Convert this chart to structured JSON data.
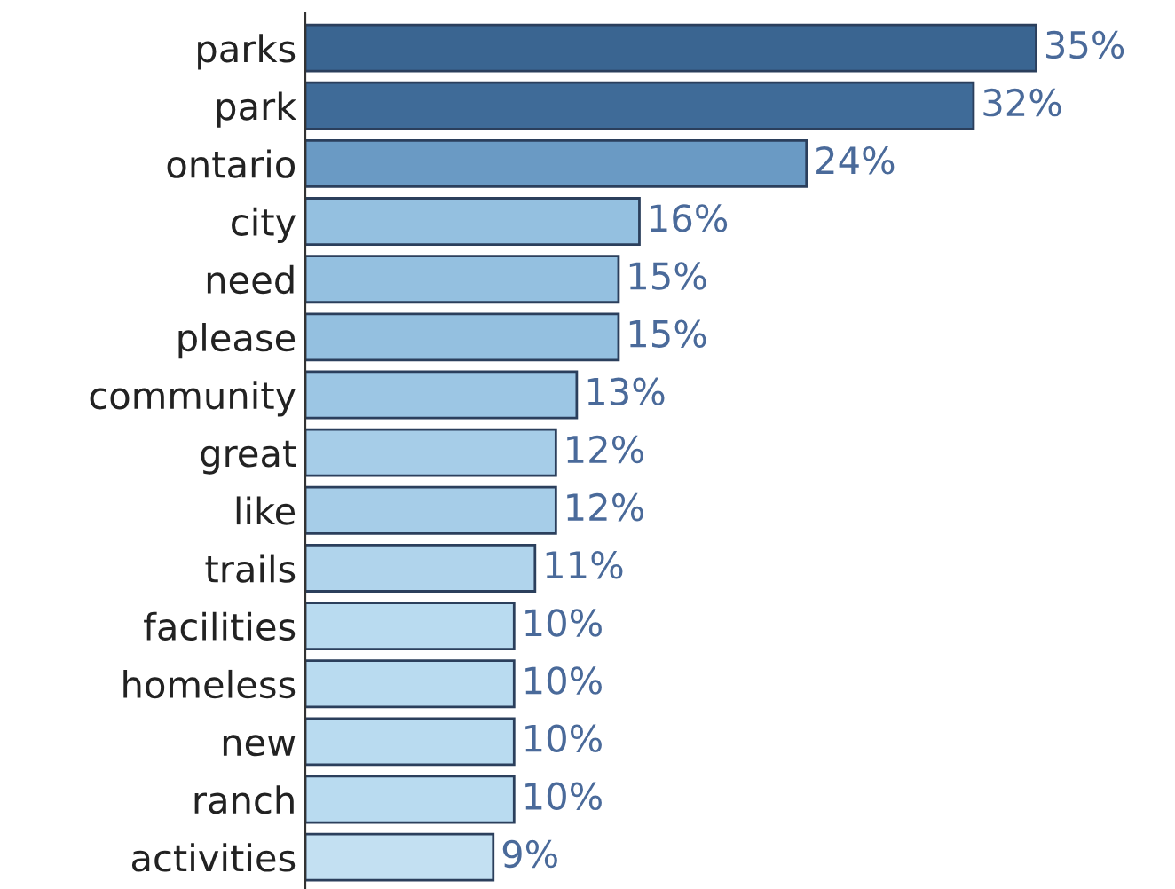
{
  "chart_data": {
    "type": "bar",
    "orientation": "horizontal",
    "categories": [
      "parks",
      "park",
      "ontario",
      "city",
      "need",
      "please",
      "community",
      "great",
      "like",
      "trails",
      "facilities",
      "homeless",
      "new",
      "ranch",
      "activities"
    ],
    "values": [
      35,
      32,
      24,
      16,
      15,
      15,
      13,
      12,
      12,
      11,
      10,
      10,
      10,
      10,
      9
    ],
    "value_labels": [
      "35%",
      "32%",
      "24%",
      "16%",
      "15%",
      "15%",
      "13%",
      "12%",
      "12%",
      "11%",
      "10%",
      "10%",
      "10%",
      "10%",
      "9%"
    ],
    "colors": [
      "#3a6591",
      "#3f6b98",
      "#6a9ac4",
      "#94c0e0",
      "#94c0e0",
      "#94c0e0",
      "#9cc6e4",
      "#a6cde8",
      "#a6cde8",
      "#b0d4ec",
      "#b9dbf0",
      "#b9dbf0",
      "#b9dbf0",
      "#b9dbf0",
      "#c3e0f2"
    ],
    "tick_labels": "y"
  }
}
